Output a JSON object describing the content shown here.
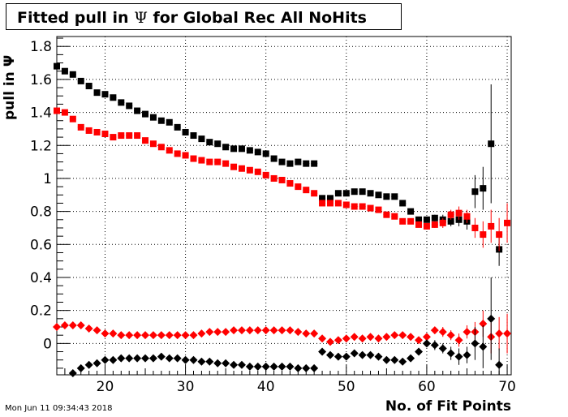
{
  "title": {
    "prefix": "Fitted pull in ",
    "symbol": "Ψ",
    "suffix": " for Global Rec All NoHits"
  },
  "timestamp": "Mon Jun 11 09:34:43 2018",
  "colors": {
    "black": "#000000",
    "red": "#ff0000",
    "grid": "#000000"
  },
  "chart_data": {
    "type": "scatter",
    "title": "Fitted pull in Ψ for Global Rec All NoHits",
    "xlabel": "No. of Fit Points",
    "ylabel": "pull in Ψ",
    "xlim": [
      14,
      70.5
    ],
    "ylim": [
      -0.19,
      1.86
    ],
    "x_ticks": [
      20,
      30,
      40,
      50,
      60,
      70
    ],
    "y_ticks": [
      0,
      0.2,
      0.4,
      0.6,
      0.8,
      1,
      1.2,
      1.4,
      1.6,
      1.8
    ],
    "y_tick_labels": [
      "0",
      "0.2",
      "0.4",
      "0.6",
      "0.8",
      "1",
      "1.2",
      "1.4",
      "1.6",
      "1.8"
    ],
    "x_tick_labels": [
      "20",
      "30",
      "40",
      "50",
      "60",
      "70"
    ],
    "grid": true,
    "series": [
      {
        "marker": "square",
        "color": "#000000",
        "x": [
          14,
          15,
          16,
          17,
          18,
          19,
          20,
          21,
          22,
          23,
          24,
          25,
          26,
          27,
          28,
          29,
          30,
          31,
          32,
          33,
          34,
          35,
          36,
          37,
          38,
          39,
          40,
          41,
          42,
          43,
          44,
          45,
          46,
          47,
          48,
          49,
          50,
          51,
          52,
          53,
          54,
          55,
          56,
          57,
          58,
          59,
          60,
          61,
          62,
          63,
          64,
          65,
          66,
          67,
          68,
          69,
          70
        ],
        "y": [
          1.68,
          1.65,
          1.63,
          1.59,
          1.56,
          1.52,
          1.51,
          1.49,
          1.46,
          1.44,
          1.41,
          1.39,
          1.37,
          1.35,
          1.34,
          1.31,
          1.28,
          1.26,
          1.24,
          1.22,
          1.21,
          1.19,
          1.18,
          1.18,
          1.17,
          1.16,
          1.15,
          1.12,
          1.1,
          1.09,
          1.1,
          1.09,
          1.09,
          0.88,
          0.88,
          0.91,
          0.91,
          0.92,
          0.92,
          0.91,
          0.9,
          0.89,
          0.89,
          0.85,
          0.8,
          0.75,
          0.75,
          0.76,
          0.75,
          0.74,
          0.75,
          0.74,
          0.92,
          0.94,
          1.21,
          0.57,
          null
        ],
        "err": [
          0,
          0,
          0,
          0,
          0,
          0,
          0,
          0,
          0,
          0,
          0,
          0,
          0,
          0,
          0,
          0,
          0,
          0,
          0,
          0,
          0,
          0,
          0,
          0,
          0,
          0,
          0,
          0,
          0,
          0,
          0,
          0,
          0,
          0,
          0,
          0,
          0,
          0,
          0,
          0,
          0,
          0,
          0,
          0,
          0,
          0,
          0,
          0.02,
          0.03,
          0.03,
          0.04,
          0.05,
          0.1,
          0.13,
          0.36,
          0.1,
          0
        ]
      },
      {
        "marker": "square",
        "color": "#ff0000",
        "x": [
          14,
          15,
          16,
          17,
          18,
          19,
          20,
          21,
          22,
          23,
          24,
          25,
          26,
          27,
          28,
          29,
          30,
          31,
          32,
          33,
          34,
          35,
          36,
          37,
          38,
          39,
          40,
          41,
          42,
          43,
          44,
          45,
          46,
          47,
          48,
          49,
          50,
          51,
          52,
          53,
          54,
          55,
          56,
          57,
          58,
          59,
          60,
          61,
          62,
          63,
          64,
          65,
          66,
          67,
          68,
          69,
          70
        ],
        "y": [
          1.41,
          1.4,
          1.36,
          1.31,
          1.29,
          1.28,
          1.27,
          1.25,
          1.26,
          1.26,
          1.26,
          1.23,
          1.21,
          1.19,
          1.17,
          1.15,
          1.14,
          1.12,
          1.11,
          1.1,
          1.1,
          1.09,
          1.07,
          1.06,
          1.05,
          1.04,
          1.02,
          1.0,
          0.99,
          0.97,
          0.95,
          0.93,
          0.91,
          0.85,
          0.85,
          0.85,
          0.84,
          0.83,
          0.83,
          0.82,
          0.81,
          0.78,
          0.77,
          0.74,
          0.74,
          0.72,
          0.71,
          0.72,
          0.73,
          0.78,
          0.79,
          0.77,
          0.7,
          0.66,
          0.71,
          0.66,
          0.73
        ],
        "err": [
          0,
          0,
          0,
          0,
          0,
          0,
          0,
          0,
          0,
          0,
          0,
          0,
          0,
          0,
          0,
          0,
          0,
          0,
          0,
          0,
          0,
          0,
          0,
          0,
          0,
          0,
          0,
          0,
          0,
          0,
          0,
          0,
          0,
          0,
          0,
          0,
          0,
          0,
          0,
          0,
          0,
          0,
          0,
          0,
          0,
          0,
          0.02,
          0.02,
          0.03,
          0.03,
          0.04,
          0.04,
          0.06,
          0.08,
          0.1,
          0.1,
          0.12
        ]
      },
      {
        "marker": "diamond",
        "color": "#ff0000",
        "x": [
          14,
          15,
          16,
          17,
          18,
          19,
          20,
          21,
          22,
          23,
          24,
          25,
          26,
          27,
          28,
          29,
          30,
          31,
          32,
          33,
          34,
          35,
          36,
          37,
          38,
          39,
          40,
          41,
          42,
          43,
          44,
          45,
          46,
          47,
          48,
          49,
          50,
          51,
          52,
          53,
          54,
          55,
          56,
          57,
          58,
          59,
          60,
          61,
          62,
          63,
          64,
          65,
          66,
          67,
          68,
          69,
          70
        ],
        "y": [
          0.1,
          0.11,
          0.11,
          0.11,
          0.09,
          0.08,
          0.06,
          0.06,
          0.05,
          0.05,
          0.05,
          0.05,
          0.05,
          0.05,
          0.05,
          0.05,
          0.05,
          0.05,
          0.06,
          0.07,
          0.07,
          0.07,
          0.08,
          0.08,
          0.08,
          0.08,
          0.08,
          0.08,
          0.08,
          0.08,
          0.07,
          0.06,
          0.06,
          0.03,
          0.01,
          0.02,
          0.03,
          0.04,
          0.03,
          0.04,
          0.03,
          0.04,
          0.05,
          0.05,
          0.04,
          0.02,
          0.04,
          0.08,
          0.07,
          0.05,
          0.02,
          0.07,
          0.07,
          0.12,
          0.04,
          0.06,
          0.06
        ],
        "err": [
          0,
          0,
          0,
          0,
          0,
          0,
          0,
          0,
          0,
          0,
          0,
          0,
          0,
          0,
          0,
          0,
          0,
          0,
          0,
          0,
          0,
          0,
          0,
          0,
          0,
          0,
          0,
          0,
          0,
          0,
          0,
          0,
          0,
          0,
          0,
          0,
          0,
          0,
          0,
          0,
          0,
          0,
          0,
          0,
          0,
          0,
          0.02,
          0.02,
          0.03,
          0.03,
          0.04,
          0.04,
          0.06,
          0.08,
          0.1,
          0.1,
          0.12
        ]
      },
      {
        "marker": "diamond",
        "color": "#000000",
        "x": [
          14,
          15,
          16,
          17,
          18,
          19,
          20,
          21,
          22,
          23,
          24,
          25,
          26,
          27,
          28,
          29,
          30,
          31,
          32,
          33,
          34,
          35,
          36,
          37,
          38,
          39,
          40,
          41,
          42,
          43,
          44,
          45,
          46,
          47,
          48,
          49,
          50,
          51,
          52,
          53,
          54,
          55,
          56,
          57,
          58,
          59,
          60,
          61,
          62,
          63,
          64,
          65,
          66,
          67,
          68,
          69,
          70
        ],
        "y": [
          null,
          null,
          -0.18,
          -0.15,
          -0.13,
          -0.12,
          -0.1,
          -0.1,
          -0.09,
          -0.09,
          -0.09,
          -0.09,
          -0.09,
          -0.08,
          -0.09,
          -0.09,
          -0.1,
          -0.1,
          -0.11,
          -0.11,
          -0.12,
          -0.12,
          -0.13,
          -0.13,
          -0.14,
          -0.14,
          -0.14,
          -0.14,
          -0.14,
          -0.14,
          -0.15,
          -0.15,
          -0.15,
          -0.05,
          -0.07,
          -0.08,
          -0.08,
          -0.06,
          -0.07,
          -0.07,
          -0.08,
          -0.1,
          -0.1,
          -0.11,
          -0.09,
          -0.05,
          0.0,
          -0.01,
          -0.03,
          -0.06,
          -0.08,
          -0.07,
          0.0,
          -0.02,
          0.15,
          -0.13,
          null
        ],
        "err": [
          0,
          0,
          0,
          0,
          0,
          0,
          0,
          0,
          0,
          0,
          0,
          0,
          0,
          0,
          0,
          0,
          0,
          0,
          0,
          0,
          0,
          0,
          0,
          0,
          0,
          0,
          0,
          0,
          0,
          0,
          0,
          0,
          0,
          0,
          0,
          0,
          0,
          0,
          0,
          0,
          0,
          0,
          0,
          0,
          0,
          0,
          0.02,
          0.03,
          0.03,
          0.04,
          0.05,
          0.05,
          0.1,
          0.13,
          0.25,
          0.1,
          0
        ]
      }
    ]
  }
}
